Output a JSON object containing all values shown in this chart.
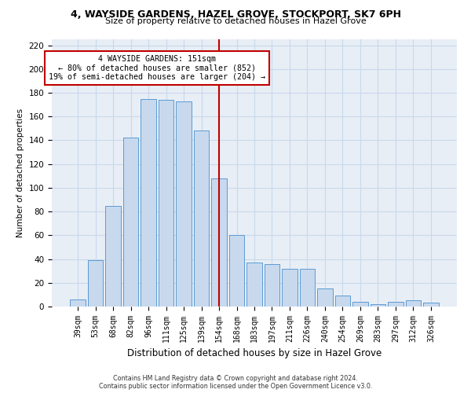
{
  "title_line1": "4, WAYSIDE GARDENS, HAZEL GROVE, STOCKPORT, SK7 6PH",
  "title_line2": "Size of property relative to detached houses in Hazel Grove",
  "xlabel": "Distribution of detached houses by size in Hazel Grove",
  "ylabel": "Number of detached properties",
  "footnote1": "Contains HM Land Registry data © Crown copyright and database right 2024.",
  "footnote2": "Contains public sector information licensed under the Open Government Licence v3.0.",
  "categories": [
    "39sqm",
    "53sqm",
    "68sqm",
    "82sqm",
    "96sqm",
    "111sqm",
    "125sqm",
    "139sqm",
    "154sqm",
    "168sqm",
    "183sqm",
    "197sqm",
    "211sqm",
    "226sqm",
    "240sqm",
    "254sqm",
    "269sqm",
    "283sqm",
    "297sqm",
    "312sqm",
    "326sqm"
  ],
  "values": [
    6,
    39,
    85,
    142,
    175,
    174,
    173,
    148,
    108,
    60,
    37,
    36,
    32,
    32,
    15,
    9,
    4,
    2,
    4,
    5,
    3
  ],
  "bar_color_fill": "#c8d9ed",
  "bar_color_edge": "#5b9bd5",
  "grid_color": "#c8d9ed",
  "background_color": "#e8eef5",
  "annotation_line_color": "#c00000",
  "annotation_box_text": "4 WAYSIDE GARDENS: 151sqm\n← 80% of detached houses are smaller (852)\n19% of semi-detached houses are larger (204) →",
  "annotation_line_index": 8,
  "ylim": [
    0,
    225
  ],
  "yticks": [
    0,
    20,
    40,
    60,
    80,
    100,
    120,
    140,
    160,
    180,
    200,
    220
  ]
}
